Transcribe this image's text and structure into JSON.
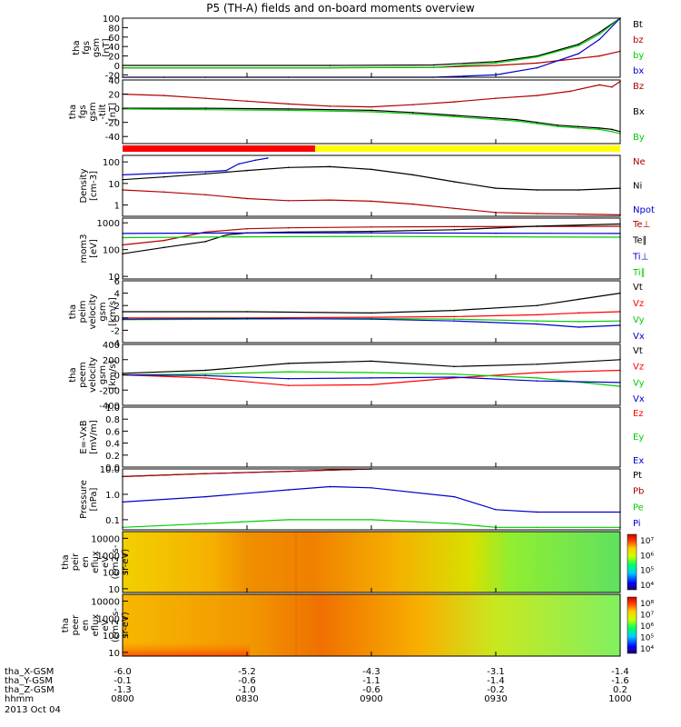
{
  "title": "P5 (TH-A) fields and on-board moments overview",
  "bottom": {
    "date": "2013 Oct 04",
    "rows": [
      {
        "label": "tha_X-GSM",
        "values": [
          "-6.0",
          "-5.2",
          "-4.3",
          "-3.1",
          "-1.4"
        ]
      },
      {
        "label": "tha_Y-GSM",
        "values": [
          "-0.1",
          "-0.6",
          "-1.1",
          "-1.4",
          "-1.6"
        ]
      },
      {
        "label": "tha_Z-GSM",
        "values": [
          "-1.3",
          "-1.0",
          "-0.6",
          "-0.2",
          "0.2"
        ]
      },
      {
        "label": "hhmm",
        "values": [
          "0800",
          "0830",
          "0900",
          "0930",
          "1000"
        ]
      }
    ]
  },
  "chart_data": [
    {
      "type": "line",
      "id": "fgs-top",
      "ylabel": [
        "tha",
        "fgs",
        "gsm",
        "[nT]"
      ],
      "yticks": [
        "100",
        "80",
        "60",
        "40",
        "20",
        "0",
        "-20"
      ],
      "ylim": [
        -25,
        100
      ],
      "series": [
        {
          "name": "Bt",
          "color": "#000000",
          "x": [
            0,
            50,
            75,
            90,
            100,
            110,
            115,
            120
          ],
          "y": [
            0,
            0,
            1,
            8,
            20,
            45,
            70,
            100
          ]
        },
        {
          "name": "bz",
          "color": "#b00000",
          "x": [
            0,
            50,
            75,
            90,
            100,
            110,
            115,
            120
          ],
          "y": [
            -5,
            -5,
            -4,
            0,
            5,
            15,
            20,
            30
          ]
        },
        {
          "name": "by",
          "color": "#00cc00",
          "x": [
            0,
            50,
            75,
            90,
            100,
            110,
            115,
            120
          ],
          "y": [
            -5,
            -5,
            -4,
            5,
            18,
            42,
            66,
            100
          ]
        },
        {
          "name": "bx",
          "color": "#0000cc",
          "x": [
            0,
            10,
            20,
            40,
            60,
            75,
            90,
            100,
            110,
            115,
            120
          ],
          "y": [
            -25,
            -25,
            -25,
            -25,
            -25,
            -25,
            -20,
            -5,
            25,
            55,
            100
          ]
        }
      ]
    },
    {
      "type": "line",
      "id": "fgs-dsl",
      "ylabel": [
        "tha",
        "fgs",
        "gsm",
        "-tilt",
        "[nT]"
      ],
      "yticks": [
        "40",
        "20",
        "0",
        "-20",
        "-40"
      ],
      "ylim": [
        -50,
        40
      ],
      "series": [
        {
          "name": "Bz",
          "color": "#b00000",
          "x": [
            0,
            10,
            20,
            30,
            40,
            50,
            60,
            70,
            80,
            90,
            100,
            108,
            115,
            118,
            120
          ],
          "y": [
            20,
            18,
            14,
            10,
            6,
            3,
            2,
            5,
            9,
            14,
            18,
            24,
            33,
            30,
            38
          ]
        },
        {
          "name": "Bx",
          "color": "#000000",
          "x": [
            0,
            20,
            40,
            60,
            70,
            80,
            90,
            95,
            100,
            105,
            110,
            115,
            118,
            120
          ],
          "y": [
            0,
            0,
            -1,
            -3,
            -6,
            -10,
            -14,
            -16,
            -20,
            -24,
            -26,
            -28,
            -30,
            -33
          ]
        },
        {
          "name": "By",
          "color": "#00cc00",
          "x": [
            0,
            20,
            40,
            60,
            70,
            80,
            90,
            95,
            100,
            105,
            110,
            115,
            118,
            120
          ],
          "y": [
            -1,
            -2,
            -3,
            -5,
            -8,
            -12,
            -16,
            -18,
            -22,
            -26,
            -28,
            -30,
            -33,
            -36
          ]
        }
      ]
    },
    {
      "type": "line",
      "id": "density",
      "log": true,
      "ylabel": [
        "Density",
        "[cm-3]"
      ],
      "yticks": [
        "100",
        "10",
        "1"
      ],
      "ylim": [
        0.3,
        200
      ],
      "series": [
        {
          "name": "Ne",
          "color": "#b00000",
          "x": [
            0,
            10,
            20,
            30,
            40,
            50,
            60,
            70,
            80,
            90,
            100,
            110,
            120
          ],
          "y": [
            5,
            4,
            3,
            2,
            1.6,
            1.7,
            1.5,
            1.1,
            0.7,
            0.45,
            0.4,
            0.38,
            0.35
          ]
        },
        {
          "name": "Ni",
          "color": "#000000",
          "x": [
            0,
            10,
            20,
            30,
            40,
            50,
            60,
            70,
            80,
            90,
            100,
            110,
            120
          ],
          "y": [
            15,
            20,
            28,
            40,
            55,
            60,
            45,
            25,
            12,
            6,
            5,
            5,
            6
          ]
        },
        {
          "name": "Npot",
          "color": "#0000cc",
          "x": [
            0,
            10,
            20,
            25,
            28,
            32,
            35
          ],
          "y": [
            25,
            30,
            35,
            40,
            80,
            120,
            150
          ]
        }
      ]
    },
    {
      "type": "line",
      "id": "mom-temp",
      "log": true,
      "ylabel": [
        "mom3",
        "[eV]"
      ],
      "yticks": [
        "1000",
        "100",
        "10"
      ],
      "ylim": [
        8,
        1500
      ],
      "series": [
        {
          "name": "Te⊥",
          "color": "#b00000",
          "x": [
            0,
            10,
            20,
            30,
            40,
            60,
            80,
            100,
            120
          ],
          "y": [
            150,
            220,
            450,
            600,
            650,
            700,
            720,
            730,
            740
          ]
        },
        {
          "name": "Te∥",
          "color": "#000000",
          "x": [
            0,
            10,
            20,
            25,
            30,
            40,
            60,
            80,
            100,
            120
          ],
          "y": [
            70,
            120,
            200,
            350,
            420,
            450,
            480,
            550,
            750,
            900
          ]
        },
        {
          "name": "Ti⊥",
          "color": "#0000cc",
          "x": [
            0,
            30,
            60,
            90,
            120
          ],
          "y": [
            400,
            420,
            420,
            410,
            400
          ]
        },
        {
          "name": "Ti∥",
          "color": "#00cc00",
          "x": [
            0,
            30,
            60,
            90,
            120
          ],
          "y": [
            280,
            300,
            310,
            300,
            290
          ]
        }
      ]
    },
    {
      "type": "line",
      "id": "peim-vel",
      "ylabel": [
        "tha",
        "peim",
        "velocity",
        "gsm",
        "[km/s]"
      ],
      "yticks": [
        "6",
        "4",
        "2",
        "0",
        "-2",
        "-4"
      ],
      "ylim": [
        -4,
        6
      ],
      "series": [
        {
          "name": "Vt",
          "color": "#000000",
          "x": [
            0,
            30,
            60,
            80,
            100,
            110,
            120
          ],
          "y": [
            1,
            1,
            0.8,
            1.2,
            2,
            3,
            4
          ]
        },
        {
          "name": "Vz",
          "color": "#ff0000",
          "x": [
            0,
            30,
            60,
            80,
            100,
            110,
            120
          ],
          "y": [
            0,
            0,
            0.1,
            0.2,
            0.5,
            0.8,
            1
          ]
        },
        {
          "name": "Vy",
          "color": "#00cc00",
          "x": [
            0,
            30,
            60,
            80,
            100,
            110,
            120
          ],
          "y": [
            -0.3,
            -0.2,
            -0.1,
            -0.2,
            -0.5,
            -0.6,
            -0.5
          ]
        },
        {
          "name": "Vx",
          "color": "#0000cc",
          "x": [
            0,
            30,
            60,
            80,
            100,
            110,
            120
          ],
          "y": [
            -0.2,
            -0.1,
            -0.2,
            -0.5,
            -1,
            -1.5,
            -1.2
          ]
        }
      ]
    },
    {
      "type": "line",
      "id": "peem-vel",
      "ylabel": [
        "tha",
        "peem",
        "velocity",
        "gsm",
        "[km/s]"
      ],
      "yticks": [
        "400",
        "200",
        "0",
        "-200",
        "-400"
      ],
      "ylim": [
        -400,
        400
      ],
      "series": [
        {
          "name": "Vt",
          "color": "#000000",
          "x": [
            0,
            20,
            40,
            60,
            80,
            100,
            120
          ],
          "y": [
            20,
            60,
            150,
            180,
            110,
            140,
            200
          ]
        },
        {
          "name": "Vz",
          "color": "#ff0000",
          "x": [
            0,
            20,
            40,
            60,
            80,
            100,
            120
          ],
          "y": [
            0,
            -40,
            -140,
            -130,
            -40,
            30,
            60
          ]
        },
        {
          "name": "Vy",
          "color": "#00cc00",
          "x": [
            0,
            20,
            40,
            60,
            80,
            100,
            120
          ],
          "y": [
            0,
            10,
            40,
            30,
            10,
            -40,
            -150
          ]
        },
        {
          "name": "Vx",
          "color": "#0000cc",
          "x": [
            0,
            20,
            40,
            60,
            80,
            100,
            120
          ],
          "y": [
            0,
            -10,
            -50,
            -40,
            -30,
            -80,
            -100
          ]
        }
      ]
    },
    {
      "type": "line",
      "id": "efield",
      "ylabel": [
        "E=-VxB",
        "[mV/m]"
      ],
      "yticks": [
        "1.0",
        "0.8",
        "0.6",
        "0.4",
        "0.2",
        "0.0"
      ],
      "ylim": [
        0,
        1
      ],
      "series": [
        {
          "name": "Ez",
          "color": "#ff0000",
          "x": [],
          "y": []
        },
        {
          "name": "Ey",
          "color": "#00cc00",
          "x": [],
          "y": []
        },
        {
          "name": "Ex",
          "color": "#0000cc",
          "x": [],
          "y": []
        }
      ]
    },
    {
      "type": "line",
      "id": "pressure",
      "log": true,
      "ylabel": [
        "Pressure",
        "[nPa]"
      ],
      "yticks": [
        "10.0",
        "1.0",
        "0.1"
      ],
      "ylim": [
        0.04,
        10
      ],
      "series": [
        {
          "name": "Pt",
          "color": "#000000",
          "x": [
            0,
            20,
            40,
            55,
            60
          ],
          "y": [
            5,
            6.5,
            8,
            9.5,
            10
          ]
        },
        {
          "name": "Pb",
          "color": "#b00000",
          "x": [
            0,
            20,
            40,
            55,
            60
          ],
          "y": [
            5,
            6.5,
            8,
            9.5,
            10
          ]
        },
        {
          "name": "Pe",
          "color": "#00cc00",
          "x": [
            0,
            20,
            40,
            60,
            80,
            90,
            100,
            120
          ],
          "y": [
            0.05,
            0.07,
            0.1,
            0.1,
            0.07,
            0.05,
            0.05,
            0.05
          ]
        },
        {
          "name": "Pi",
          "color": "#0000cc",
          "x": [
            0,
            20,
            40,
            50,
            60,
            80,
            90,
            100,
            120
          ],
          "y": [
            0.5,
            0.8,
            1.5,
            2,
            1.8,
            0.8,
            0.25,
            0.2,
            0.2
          ]
        }
      ]
    },
    {
      "type": "heatmap",
      "id": "peir-spec",
      "ylabel": [
        "tha",
        "peir",
        "en",
        "eflux",
        "eV",
        "(cm2-s-",
        "sr-eV)"
      ],
      "yticks": [
        "10000",
        "1000",
        "100",
        "10"
      ],
      "colorbar_ticks": [
        "10⁷",
        "10⁶",
        "10⁵",
        "10⁴"
      ]
    },
    {
      "type": "heatmap",
      "id": "peer-spec",
      "ylabel": [
        "tha",
        "peer",
        "en",
        "eflux",
        "eV",
        "(cm2-s-",
        "sr-eV)"
      ],
      "yticks": [
        "10000",
        "1000",
        "100",
        "10"
      ],
      "colorbar_ticks": [
        "10⁸",
        "10⁷",
        "10⁶",
        "10⁵",
        "10⁴"
      ]
    }
  ]
}
